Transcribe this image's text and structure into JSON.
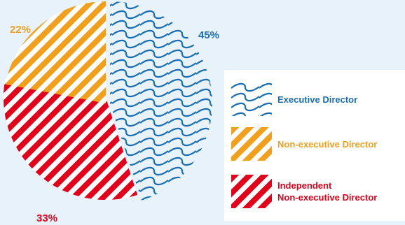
{
  "chart_data": {
    "type": "pie",
    "title": "",
    "slices": [
      {
        "label": "Executive Director",
        "value": 45,
        "value_label": "45%",
        "color": "#1a6fb3",
        "pattern": "waves"
      },
      {
        "label": "Independent Non-executive Director",
        "value": 33,
        "value_label": "33%",
        "color": "#e3001b",
        "pattern": "diagonal-stripes"
      },
      {
        "label": "Non-executive Director",
        "value": 22,
        "value_label": "22%",
        "color": "#f2a01c",
        "pattern": "diagonal-stripes"
      }
    ],
    "legend": {
      "placement": "right",
      "items": [
        {
          "label": "Executive Director",
          "color": "#1a6fb3",
          "pattern": "waves"
        },
        {
          "label": "Non-executive Director",
          "color": "#f2a01c",
          "pattern": "diagonal-stripes"
        },
        {
          "label": "Independent\nNon-executive Director",
          "color": "#e3001b",
          "pattern": "diagonal-stripes"
        }
      ]
    },
    "background_color": "#e8f2fb"
  }
}
